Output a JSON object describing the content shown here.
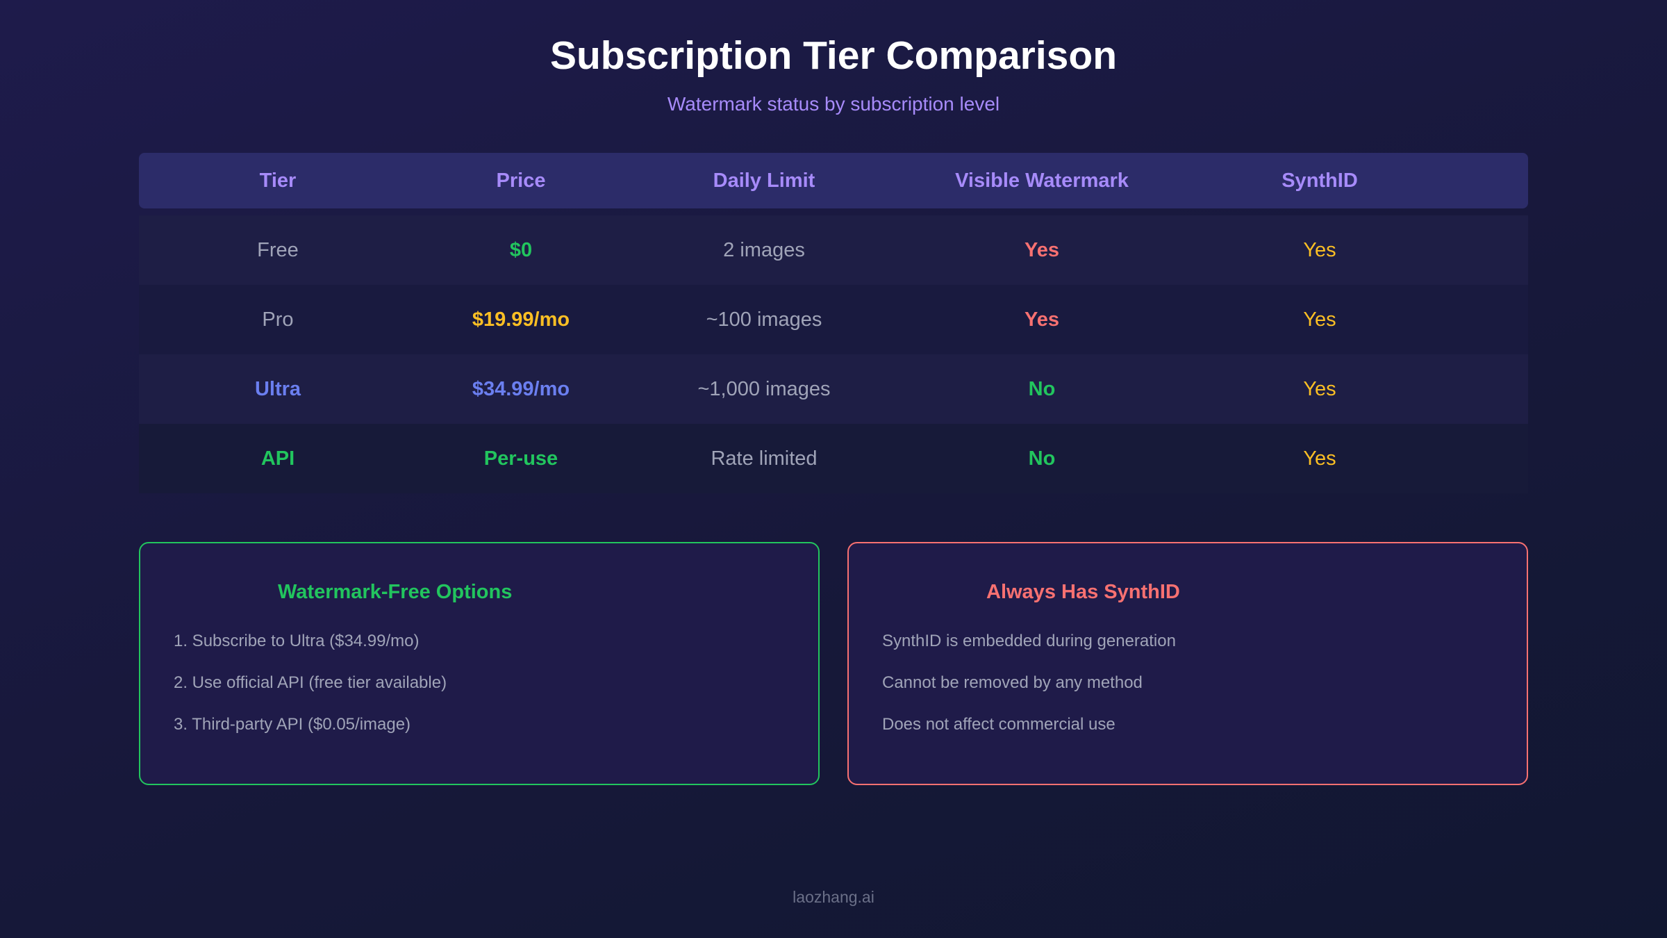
{
  "title": "Subscription Tier Comparison",
  "subtitle": "Watermark status by subscription level",
  "table": {
    "headers": [
      "Tier",
      "Price",
      "Daily Limit",
      "Visible Watermark",
      "SynthID"
    ],
    "rows": [
      {
        "tier": "Free",
        "price": "$0",
        "daily_limit": "2 images",
        "visible_watermark": "Yes",
        "synthid": "Yes"
      },
      {
        "tier": "Pro",
        "price": "$19.99/mo",
        "daily_limit": "~100 images",
        "visible_watermark": "Yes",
        "synthid": "Yes"
      },
      {
        "tier": "Ultra",
        "price": "$34.99/mo",
        "daily_limit": "~1,000 images",
        "visible_watermark": "No",
        "synthid": "Yes"
      },
      {
        "tier": "API",
        "price": "Per-use",
        "daily_limit": "Rate limited",
        "visible_watermark": "No",
        "synthid": "Yes"
      }
    ]
  },
  "watermark_free_box": {
    "title": "Watermark-Free Options",
    "items": [
      "1. Subscribe to Ultra ($34.99/mo)",
      "2. Use official API (free tier available)",
      "3. Third-party API ($0.05/image)"
    ]
  },
  "synthid_box": {
    "title": "Always Has SynthID",
    "items": [
      "SynthID is embedded during generation",
      "Cannot be removed by any method",
      "Does not affect commercial use"
    ]
  },
  "footer": "laozhang.ai",
  "colors": {
    "accent_purple": "#a78bfa",
    "positive_green": "#22c55e",
    "price_gold": "#fbbf24",
    "warning_red": "#f87171",
    "ultra_blue": "#6b7ff0"
  }
}
